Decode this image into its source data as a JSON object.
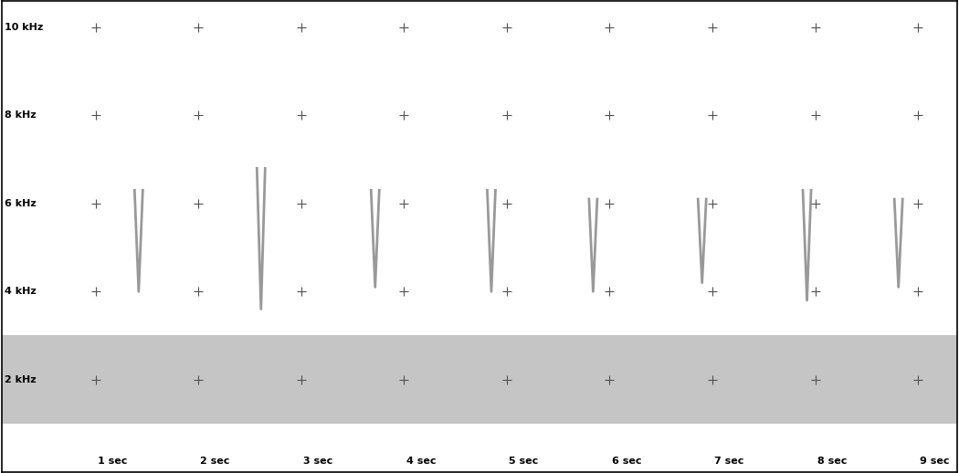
{
  "chart_data": {
    "type": "spectrogram",
    "xlim": [
      0.09,
      9.38
    ],
    "ylim": [
      -0.1,
      10.6
    ],
    "xticks": [
      {
        "value": 1,
        "label": "1 sec"
      },
      {
        "value": 2,
        "label": "2 sec"
      },
      {
        "value": 3,
        "label": "3 sec"
      },
      {
        "value": 4,
        "label": "4 sec"
      },
      {
        "value": 5,
        "label": "5 sec"
      },
      {
        "value": 6,
        "label": "6 sec"
      },
      {
        "value": 7,
        "label": "7 sec"
      },
      {
        "value": 8,
        "label": "8 sec"
      },
      {
        "value": 9,
        "label": "9 sec"
      }
    ],
    "yticks": [
      {
        "value": 2,
        "label": "2 kHz"
      },
      {
        "value": 4,
        "label": "4 kHz"
      },
      {
        "value": 6,
        "label": "6 kHz"
      },
      {
        "value": 8,
        "label": "8 kHz"
      },
      {
        "value": 10,
        "label": "10 kHz"
      }
    ],
    "grid": true,
    "tick_labels": false,
    "color": "#808080",
    "noise_band": {
      "start": 0.09,
      "end": 9.38,
      "low": 1.0,
      "high": 3.0
    },
    "calls": [
      {
        "time": 1.42,
        "low": 4.0,
        "high": 6.3
      },
      {
        "time": 2.61,
        "low": 3.6,
        "high": 6.8
      },
      {
        "time": 3.72,
        "low": 4.1,
        "high": 6.3
      },
      {
        "time": 4.85,
        "low": 4.0,
        "high": 6.3
      },
      {
        "time": 5.84,
        "low": 4.0,
        "high": 6.1
      },
      {
        "time": 6.9,
        "low": 4.2,
        "high": 6.1
      },
      {
        "time": 7.92,
        "low": 3.8,
        "high": 6.3
      },
      {
        "time": 8.81,
        "low": 4.1,
        "high": 6.1
      }
    ]
  }
}
